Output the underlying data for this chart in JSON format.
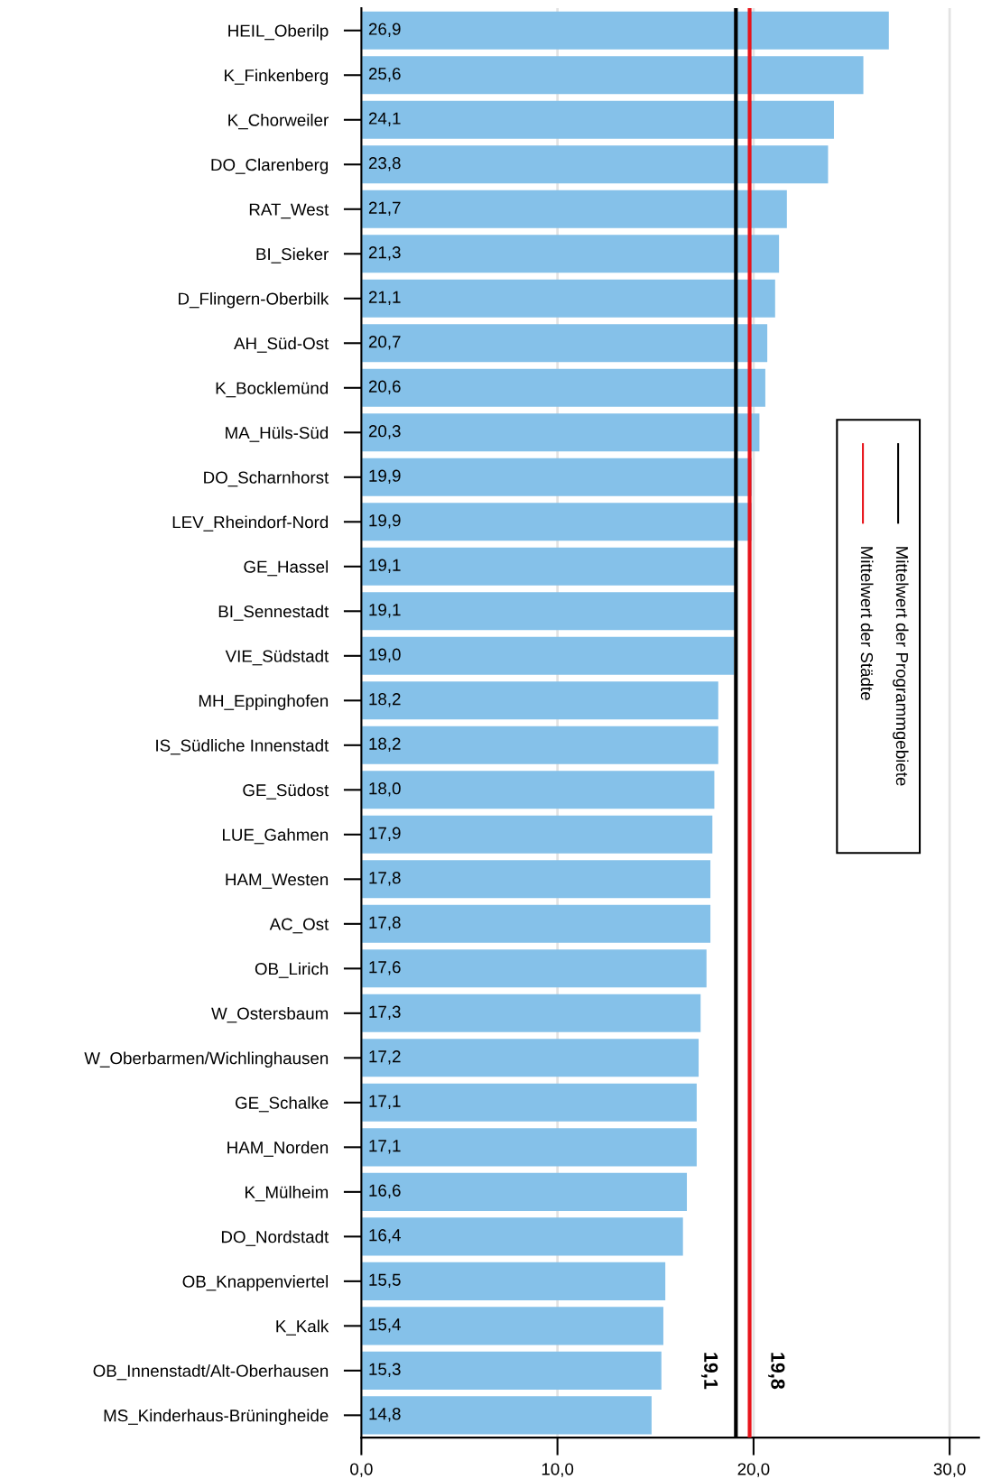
{
  "chart_data": {
    "type": "bar",
    "orientation": "horizontal",
    "categories": [
      "HEIL_Oberilp",
      "K_Finkenberg",
      "K_Chorweiler",
      "DO_Clarenberg",
      "RAT_West",
      "BI_Sieker",
      "D_Flingern-Oberbilk",
      "AH_Süd-Ost",
      "K_Bocklemünd",
      "MA_Hüls-Süd",
      "DO_Scharnhorst",
      "LEV_Rheindorf-Nord",
      "GE_Hassel",
      "BI_Sennestadt",
      "VIE_Südstadt",
      "MH_Eppinghofen",
      "IS_Südliche Innenstadt",
      "GE_Südost",
      "LUE_Gahmen",
      "HAM_Westen",
      "AC_Ost",
      "OB_Lirich",
      "W_Ostersbaum",
      "W_Oberbarmen/Wichlinghausen",
      "GE_Schalke",
      "HAM_Norden",
      "K_Mülheim",
      "DO_Nordstadt",
      "OB_Knappenviertel",
      "K_Kalk",
      "OB_Innenstadt/Alt-Oberhausen",
      "MS_Kinderhaus-Brüningheide"
    ],
    "values": [
      26.9,
      25.6,
      24.1,
      23.8,
      21.7,
      21.3,
      21.1,
      20.7,
      20.6,
      20.3,
      19.9,
      19.9,
      19.1,
      19.1,
      19.0,
      18.2,
      18.2,
      18.0,
      17.9,
      17.8,
      17.8,
      17.6,
      17.3,
      17.2,
      17.1,
      17.1,
      16.6,
      16.4,
      15.5,
      15.4,
      15.3,
      14.8
    ],
    "value_labels": [
      "26,9",
      "25,6",
      "24,1",
      "23,8",
      "21,7",
      "21,3",
      "21,1",
      "20,7",
      "20,6",
      "20,3",
      "19,9",
      "19,9",
      "19,1",
      "19,1",
      "19,0",
      "18,2",
      "18,2",
      "18,0",
      "17,9",
      "17,8",
      "17,8",
      "17,6",
      "17,3",
      "17,2",
      "17,1",
      "17,1",
      "16,6",
      "16,4",
      "15,5",
      "15,4",
      "15,3",
      "14,8"
    ],
    "color": "#85c1e9",
    "xlim": [
      0,
      31.5
    ],
    "xticks": [
      {
        "value": 0,
        "label": "0,0"
      },
      {
        "value": 10,
        "label": "10,0"
      },
      {
        "value": 20,
        "label": "20,0"
      },
      {
        "value": 30,
        "label": "30,0"
      }
    ],
    "grid": "x",
    "ref_lines": [
      {
        "axis": "x",
        "value": 19.1,
        "label": "19,1",
        "color": "#000000"
      },
      {
        "axis": "x",
        "value": 19.8,
        "label": "19,8",
        "color": "#e8141b"
      }
    ],
    "annotations": [
      "Mittelwert der Programmgebiete",
      "Mittelwert der Städte"
    ],
    "legend": "right"
  }
}
